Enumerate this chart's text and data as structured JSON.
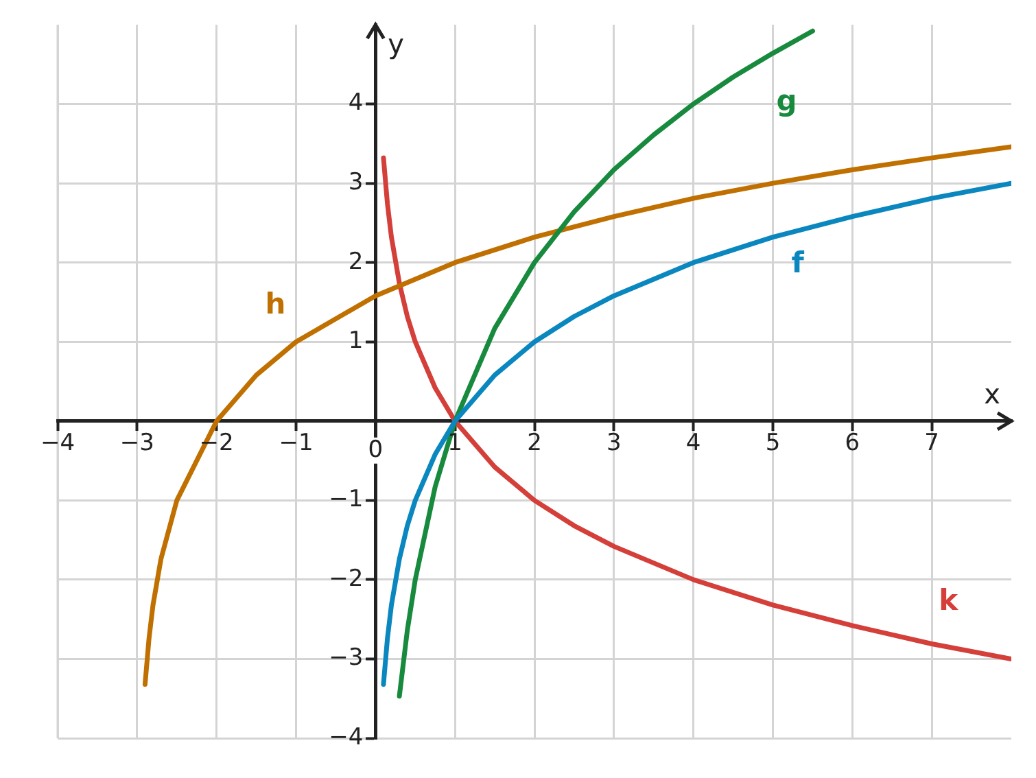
{
  "chart_data": {
    "type": "line",
    "xlabel": "x",
    "ylabel": "y",
    "xlim": [
      -4,
      8
    ],
    "ylim": [
      -4,
      5
    ],
    "xticks": [
      -4,
      -3,
      -2,
      -1,
      0,
      1,
      2,
      3,
      4,
      5,
      6,
      7
    ],
    "yticks": [
      -4,
      -3,
      -2,
      -1,
      1,
      2,
      3,
      4
    ],
    "grid": true,
    "legend": false,
    "marker": "none",
    "line_style": "solid",
    "series": [
      {
        "color": "#0a87bf",
        "x": [
          0.1,
          0.15,
          0.2,
          0.3,
          0.4,
          0.5,
          0.75,
          1,
          1.5,
          2,
          2.5,
          3,
          4,
          5,
          6,
          7,
          8
        ],
        "values": [
          -3.32,
          -2.74,
          -2.32,
          -1.74,
          -1.32,
          -1,
          -0.42,
          0,
          0.58,
          1,
          1.32,
          1.58,
          2,
          2.32,
          2.58,
          2.81,
          3
        ]
      },
      {
        "color": "#178a3e",
        "x": [
          0.3,
          0.4,
          0.5,
          0.75,
          1,
          1.5,
          2,
          2.5,
          3,
          3.5,
          4,
          4.5,
          5,
          5.5
        ],
        "values": [
          -3.47,
          -2.64,
          -2,
          -0.83,
          0,
          1.17,
          2,
          2.64,
          3.17,
          3.61,
          4,
          4.34,
          4.64,
          4.92
        ]
      },
      {
        "color": "#c07000",
        "x": [
          -2.9,
          -2.85,
          -2.8,
          -2.7,
          -2.5,
          -2,
          -1.5,
          -1,
          0,
          1,
          2,
          3,
          4,
          5,
          6,
          7,
          8
        ],
        "values": [
          -3.32,
          -2.74,
          -2.32,
          -1.74,
          -1,
          0,
          0.58,
          1,
          1.58,
          2,
          2.32,
          2.58,
          2.81,
          3,
          3.17,
          3.32,
          3.46
        ]
      },
      {
        "color": "#d43f3a",
        "x": [
          0.1,
          0.15,
          0.2,
          0.3,
          0.4,
          0.5,
          0.75,
          1,
          1.5,
          2,
          2.5,
          3,
          4,
          5,
          6,
          7,
          8
        ],
        "values": [
          3.32,
          2.74,
          2.32,
          1.74,
          1.32,
          1,
          0.42,
          0,
          -0.58,
          -1,
          -1.32,
          -1.58,
          -2,
          -2.32,
          -2.58,
          -2.81,
          -3
        ]
      }
    ],
    "annotations": [
      {
        "text": "f",
        "x": 5,
        "y": 2.32
      },
      {
        "text": "g",
        "x": 5,
        "y": 4.64
      },
      {
        "text": "h",
        "x": -1,
        "y": 1
      },
      {
        "text": "k",
        "x": 7,
        "y": -2.81
      }
    ]
  }
}
